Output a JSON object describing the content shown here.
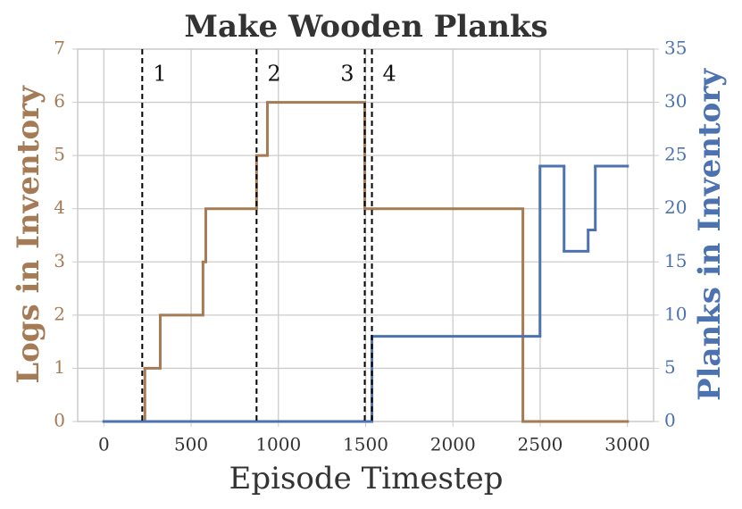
{
  "chart_data": {
    "type": "step",
    "title": "Make Wooden Planks",
    "xlabel": "Episode Timestep",
    "ylabel": "Logs in Inventory",
    "y2label": "Planks in Inventory",
    "xlim": [
      -150,
      3150
    ],
    "xticks": [
      0,
      500,
      1000,
      1500,
      2000,
      2500,
      3000
    ],
    "ylim": [
      0,
      7
    ],
    "yticks": [
      0,
      1,
      2,
      3,
      4,
      5,
      6,
      7
    ],
    "y2lim": [
      0,
      35
    ],
    "y2ticks": [
      0,
      5,
      10,
      15,
      20,
      25,
      30,
      35
    ],
    "grid": true,
    "series": [
      {
        "name": "Logs in Inventory",
        "color": "#a47b55",
        "axis": "y",
        "x": [
          0,
          235,
          323,
          568,
          584,
          875,
          937,
          1495,
          2401,
          3000
        ],
        "values": [
          0,
          1,
          2,
          3,
          4,
          5,
          6,
          4,
          0,
          0
        ]
      },
      {
        "name": "Planks in Inventory",
        "color": "#4c72b0",
        "axis": "y2",
        "x": [
          0,
          1536,
          2499,
          2637,
          2775,
          2816,
          3000
        ],
        "values": [
          0,
          8,
          24,
          16,
          18,
          24,
          24
        ]
      }
    ],
    "vlines": [
      {
        "x": 220,
        "label": "1"
      },
      {
        "x": 875,
        "label": "2"
      },
      {
        "x": 1495,
        "label": "3"
      },
      {
        "x": 1536,
        "label": "4"
      }
    ]
  }
}
